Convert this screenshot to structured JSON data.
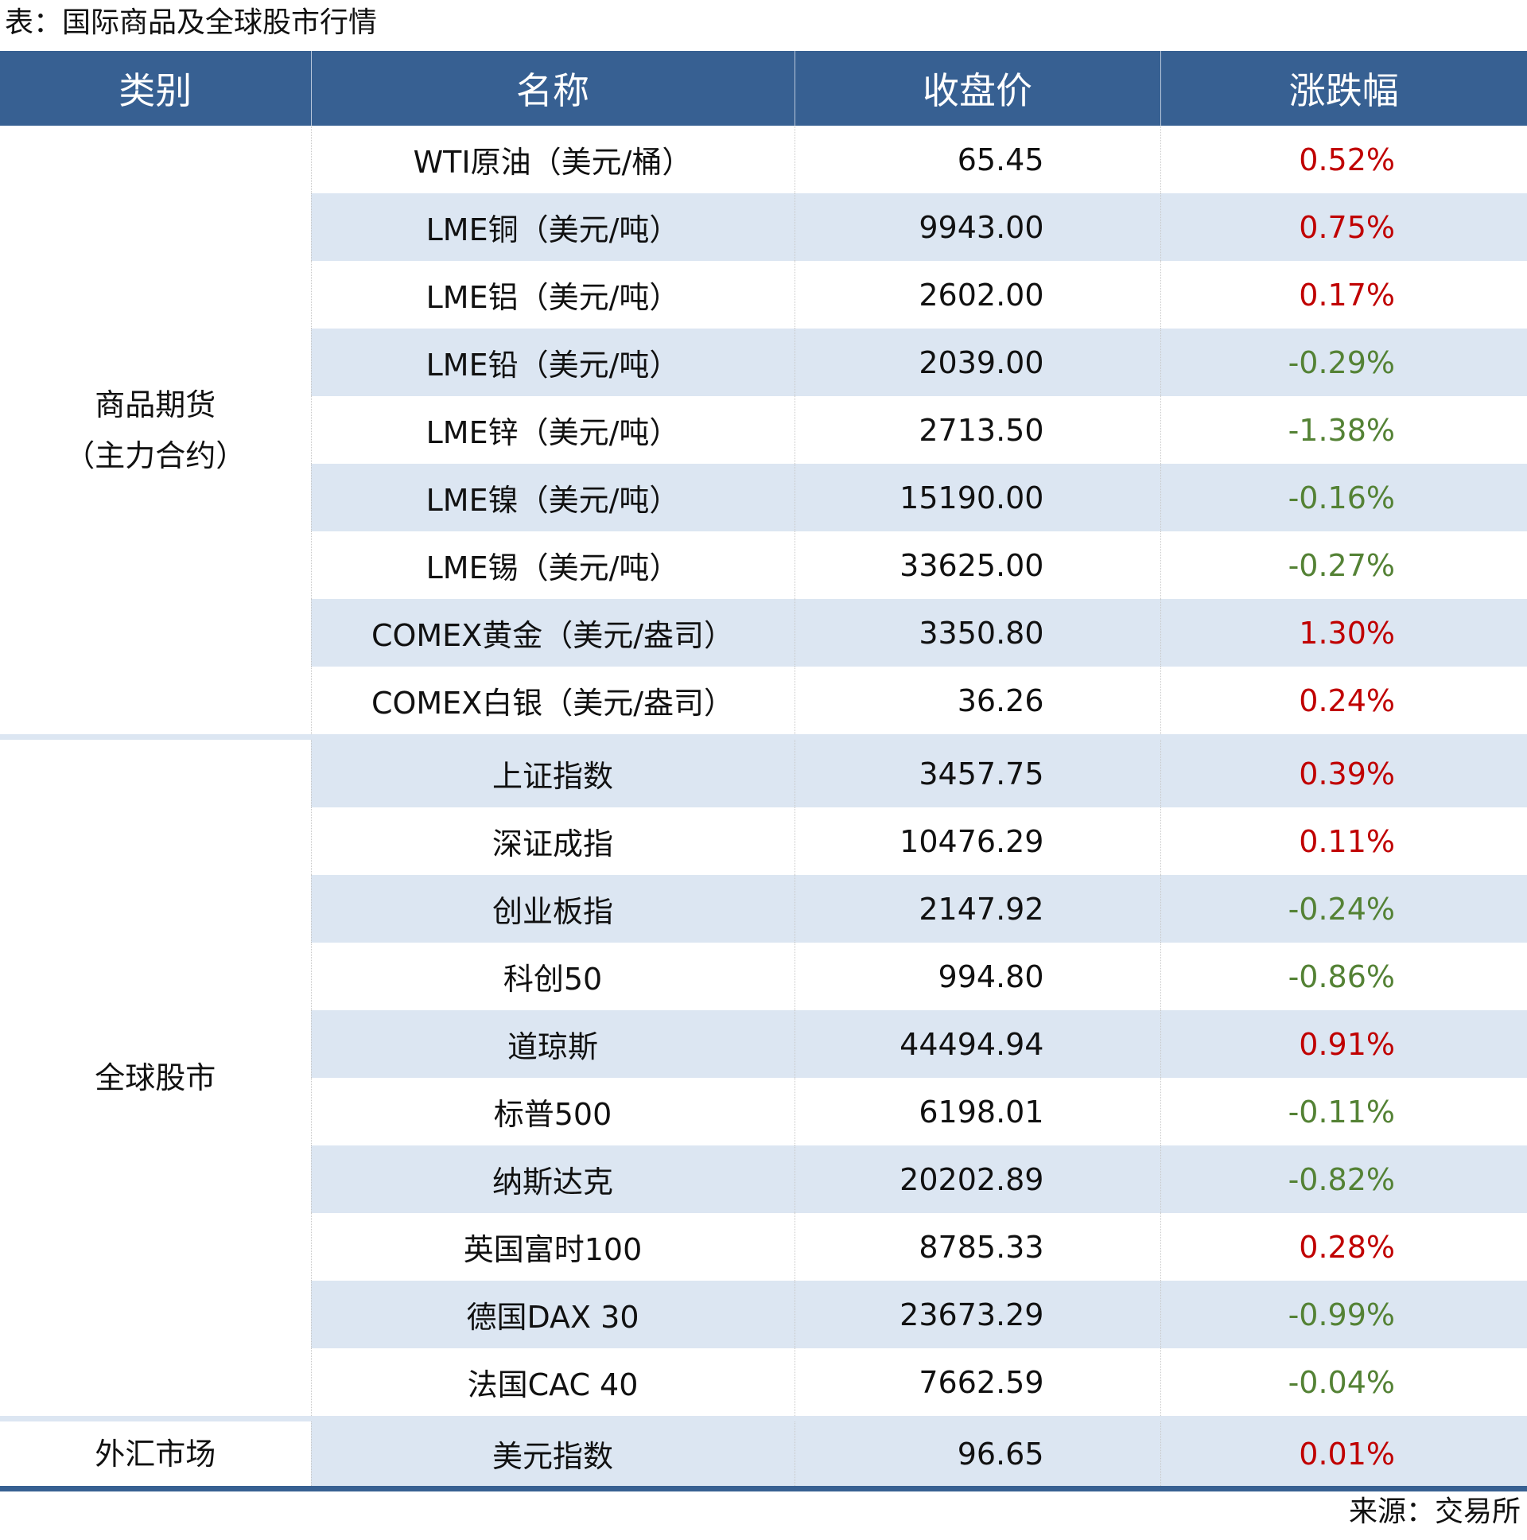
{
  "title": "表：国际商品及全球股市行情",
  "headers": [
    "类别",
    "名称",
    "收盘价",
    "涨跌幅"
  ],
  "colors": {
    "header_bg": "#376092",
    "row_shade": "#dce6f2",
    "up": "#c00000",
    "down": "#548235"
  },
  "groups": [
    {
      "category": "商品期货\n（主力合约）",
      "category_line1": "商品期货",
      "category_line2": "（主力合约）",
      "rows": [
        {
          "name": "WTI原油（美元/桶）",
          "price": "65.45",
          "change": "0.52%"
        },
        {
          "name": "LME铜（美元/吨）",
          "price": "9943.00",
          "change": "0.75%"
        },
        {
          "name": "LME铝（美元/吨）",
          "price": "2602.00",
          "change": "0.17%"
        },
        {
          "name": "LME铅（美元/吨）",
          "price": "2039.00",
          "change": "-0.29%"
        },
        {
          "name": "LME锌（美元/吨）",
          "price": "2713.50",
          "change": "-1.38%"
        },
        {
          "name": "LME镍（美元/吨）",
          "price": "15190.00",
          "change": "-0.16%"
        },
        {
          "name": "LME锡（美元/吨）",
          "price": "33625.00",
          "change": "-0.27%"
        },
        {
          "name": "COMEX黄金（美元/盎司）",
          "price": "3350.80",
          "change": "1.30%"
        },
        {
          "name": "COMEX白银（美元/盎司）",
          "price": "36.26",
          "change": "0.24%"
        }
      ]
    },
    {
      "category_line1": "全球股市",
      "rows": [
        {
          "name": "上证指数",
          "price": "3457.75",
          "change": "0.39%"
        },
        {
          "name": "深证成指",
          "price": "10476.29",
          "change": "0.11%"
        },
        {
          "name": "创业板指",
          "price": "2147.92",
          "change": "-0.24%"
        },
        {
          "name": "科创50",
          "price": "994.80",
          "change": "-0.86%"
        },
        {
          "name": "道琼斯",
          "price": "44494.94",
          "change": "0.91%"
        },
        {
          "name": "标普500",
          "price": "6198.01",
          "change": "-0.11%"
        },
        {
          "name": "纳斯达克",
          "price": "20202.89",
          "change": "-0.82%"
        },
        {
          "name": "英国富时100",
          "price": "8785.33",
          "change": "0.28%"
        },
        {
          "name": "德国DAX 30",
          "price": "23673.29",
          "change": "-0.99%"
        },
        {
          "name": "法国CAC 40",
          "price": "7662.59",
          "change": "-0.04%"
        }
      ]
    },
    {
      "category_line1": "外汇市场",
      "rows": [
        {
          "name": "美元指数",
          "price": "96.65",
          "change": "0.01%"
        }
      ]
    }
  ],
  "source": "来源：交易所"
}
